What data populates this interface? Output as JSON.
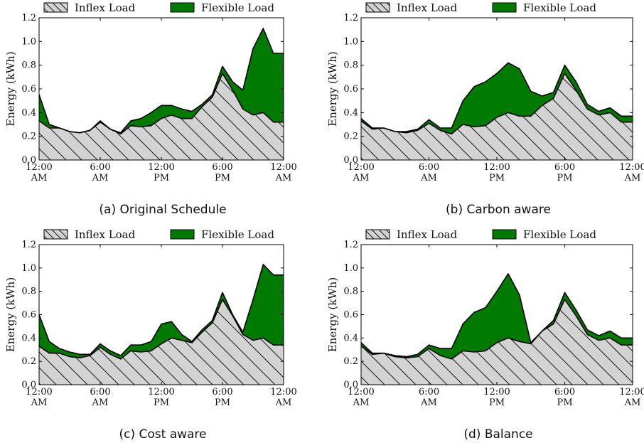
{
  "chart_data": [
    {
      "type": "area",
      "caption": "(a) Original Schedule",
      "ylabel": "Energy (kWh)",
      "ylim": [
        0,
        1.2
      ],
      "yticks": [
        "0.0",
        "0.2",
        "0.4",
        "0.6",
        "0.8",
        "1.0",
        "1.2"
      ],
      "xticks": [
        {
          "l1": "12:00",
          "l2": "AM"
        },
        {
          "l1": "6:00",
          "l2": "AM"
        },
        {
          "l1": "12:00",
          "l2": "PM"
        },
        {
          "l1": "6:00",
          "l2": "PM"
        },
        {
          "l1": "12:00",
          "l2": "AM"
        }
      ],
      "x": [
        0,
        1,
        2,
        3,
        4,
        5,
        6,
        7,
        8,
        9,
        10,
        11,
        12,
        13,
        14,
        15,
        16,
        17,
        18,
        19,
        20,
        21,
        22,
        23,
        24
      ],
      "series": [
        {
          "name": "Inflex Load",
          "values": [
            0.33,
            0.27,
            0.27,
            0.24,
            0.23,
            0.25,
            0.32,
            0.26,
            0.22,
            0.29,
            0.28,
            0.29,
            0.35,
            0.38,
            0.35,
            0.35,
            0.45,
            0.53,
            0.73,
            0.59,
            0.43,
            0.38,
            0.4,
            0.32,
            0.32
          ]
        },
        {
          "name": "Flexible Load",
          "values": [
            0.55,
            0.3,
            0.27,
            0.24,
            0.23,
            0.25,
            0.33,
            0.26,
            0.23,
            0.33,
            0.35,
            0.4,
            0.46,
            0.46,
            0.43,
            0.41,
            0.47,
            0.55,
            0.79,
            0.66,
            0.59,
            0.94,
            1.11,
            0.9,
            0.9
          ]
        }
      ]
    },
    {
      "type": "area",
      "caption": "(b) Carbon aware",
      "ylabel": "Energy (kWh)",
      "ylim": [
        0,
        1.2
      ],
      "yticks": [
        "0.0",
        "0.2",
        "0.4",
        "0.6",
        "0.8",
        "1.0",
        "1.2"
      ],
      "xticks": [
        {
          "l1": "12:00",
          "l2": "AM"
        },
        {
          "l1": "6:00",
          "l2": "AM"
        },
        {
          "l1": "12:00",
          "l2": "PM"
        },
        {
          "l1": "6:00",
          "l2": "PM"
        },
        {
          "l1": "12:00",
          "l2": "AM"
        }
      ],
      "x": [
        0,
        1,
        2,
        3,
        4,
        5,
        6,
        7,
        8,
        9,
        10,
        11,
        12,
        13,
        14,
        15,
        16,
        17,
        18,
        19,
        20,
        21,
        22,
        23,
        24
      ],
      "series": [
        {
          "name": "Inflex Load",
          "values": [
            0.33,
            0.26,
            0.27,
            0.24,
            0.23,
            0.25,
            0.31,
            0.25,
            0.22,
            0.3,
            0.28,
            0.29,
            0.36,
            0.4,
            0.37,
            0.37,
            0.46,
            0.52,
            0.73,
            0.59,
            0.43,
            0.38,
            0.4,
            0.32,
            0.32
          ]
        },
        {
          "name": "Flexible Load",
          "values": [
            0.35,
            0.27,
            0.27,
            0.24,
            0.24,
            0.26,
            0.34,
            0.27,
            0.27,
            0.5,
            0.62,
            0.66,
            0.73,
            0.82,
            0.77,
            0.58,
            0.54,
            0.57,
            0.8,
            0.66,
            0.47,
            0.41,
            0.44,
            0.37,
            0.37
          ]
        }
      ]
    },
    {
      "type": "area",
      "caption": "(c) Cost aware",
      "ylabel": "Energy (kWh)",
      "ylim": [
        0,
        1.2
      ],
      "yticks": [
        "0.0",
        "0.2",
        "0.4",
        "0.6",
        "0.8",
        "1.0",
        "1.2"
      ],
      "xticks": [
        {
          "l1": "12:00",
          "l2": "AM"
        },
        {
          "l1": "6:00",
          "l2": "AM"
        },
        {
          "l1": "12:00",
          "l2": "PM"
        },
        {
          "l1": "6:00",
          "l2": "PM"
        },
        {
          "l1": "12:00",
          "l2": "AM"
        }
      ],
      "x": [
        0,
        1,
        2,
        3,
        4,
        5,
        6,
        7,
        8,
        9,
        10,
        11,
        12,
        13,
        14,
        15,
        16,
        17,
        18,
        19,
        20,
        21,
        22,
        23,
        24
      ],
      "series": [
        {
          "name": "Inflex Load",
          "values": [
            0.33,
            0.27,
            0.27,
            0.24,
            0.23,
            0.25,
            0.32,
            0.26,
            0.22,
            0.29,
            0.28,
            0.29,
            0.35,
            0.4,
            0.38,
            0.36,
            0.45,
            0.53,
            0.73,
            0.59,
            0.43,
            0.38,
            0.4,
            0.34,
            0.34
          ]
        },
        {
          "name": "Flexible Load",
          "values": [
            0.6,
            0.37,
            0.31,
            0.28,
            0.26,
            0.26,
            0.35,
            0.29,
            0.25,
            0.34,
            0.34,
            0.37,
            0.52,
            0.54,
            0.43,
            0.37,
            0.47,
            0.55,
            0.79,
            0.6,
            0.45,
            0.73,
            1.03,
            0.94,
            0.94
          ]
        }
      ]
    },
    {
      "type": "area",
      "caption": "(d) Balance",
      "ylabel": "Energy (kWh)",
      "ylim": [
        0,
        1.2
      ],
      "yticks": [
        "0.0",
        "0.2",
        "0.4",
        "0.6",
        "0.8",
        "1.0",
        "1.2"
      ],
      "xticks": [
        {
          "l1": "12:00",
          "l2": "AM"
        },
        {
          "l1": "6:00",
          "l2": "AM"
        },
        {
          "l1": "12:00",
          "l2": "PM"
        },
        {
          "l1": "6:00",
          "l2": "PM"
        },
        {
          "l1": "12:00",
          "l2": "AM"
        }
      ],
      "x": [
        0,
        1,
        2,
        3,
        4,
        5,
        6,
        7,
        8,
        9,
        10,
        11,
        12,
        13,
        14,
        15,
        16,
        17,
        18,
        19,
        20,
        21,
        22,
        23,
        24
      ],
      "series": [
        {
          "name": "Inflex Load",
          "values": [
            0.33,
            0.26,
            0.27,
            0.24,
            0.23,
            0.24,
            0.31,
            0.25,
            0.22,
            0.29,
            0.28,
            0.29,
            0.36,
            0.4,
            0.37,
            0.35,
            0.46,
            0.52,
            0.73,
            0.59,
            0.43,
            0.38,
            0.4,
            0.34,
            0.34
          ]
        },
        {
          "name": "Flexible Load",
          "values": [
            0.36,
            0.27,
            0.27,
            0.25,
            0.24,
            0.26,
            0.34,
            0.31,
            0.31,
            0.52,
            0.62,
            0.66,
            0.8,
            0.95,
            0.77,
            0.36,
            0.46,
            0.55,
            0.79,
            0.64,
            0.47,
            0.42,
            0.46,
            0.4,
            0.4
          ]
        }
      ]
    }
  ],
  "legend": {
    "inflex": "Inflex Load",
    "flexible": "Flexible Load"
  },
  "colors": {
    "inflex_fill": "#d3d3d3",
    "flexible_fill": "#007a00",
    "outline": "#000000"
  }
}
